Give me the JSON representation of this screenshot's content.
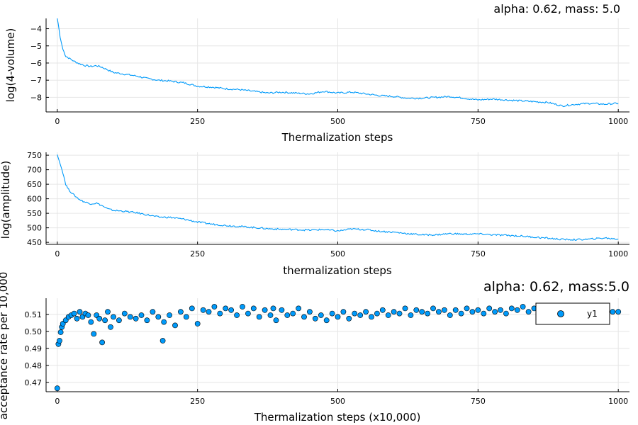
{
  "chart_data": [
    {
      "type": "line",
      "title": "alpha: 0.62, mass: 5.0",
      "xlabel": "Thermalization steps",
      "ylabel": "log(4-volume)",
      "xlim": [
        -20,
        1020
      ],
      "ylim": [
        -8.85,
        -3.4
      ],
      "xticks": [
        0,
        250,
        500,
        750,
        1000
      ],
      "yticks": [
        -8,
        -7,
        -6,
        -5,
        -4
      ],
      "ytick_labels": [
        "−8",
        "−7",
        "−6",
        "−5",
        "−4"
      ],
      "color": "#009AFA",
      "series": [
        {
          "name": "y1",
          "x": [
            0,
            5,
            10,
            15,
            20,
            30,
            40,
            50,
            60,
            70,
            80,
            90,
            100,
            120,
            140,
            160,
            180,
            200,
            225,
            250,
            275,
            300,
            325,
            350,
            375,
            400,
            425,
            450,
            475,
            500,
            525,
            550,
            575,
            600,
            625,
            650,
            675,
            700,
            725,
            750,
            775,
            800,
            825,
            850,
            875,
            900,
            925,
            950,
            975,
            1000
          ],
          "y": [
            -3.3,
            -4.5,
            -5.2,
            -5.6,
            -5.7,
            -5.9,
            -6.05,
            -6.15,
            -6.2,
            -6.15,
            -6.25,
            -6.4,
            -6.55,
            -6.65,
            -6.75,
            -6.9,
            -7.0,
            -7.05,
            -7.15,
            -7.35,
            -7.4,
            -7.5,
            -7.55,
            -7.65,
            -7.75,
            -7.7,
            -7.75,
            -7.8,
            -7.65,
            -7.75,
            -7.7,
            -7.8,
            -7.9,
            -7.95,
            -8.05,
            -8.05,
            -8.0,
            -7.95,
            -8.05,
            -8.15,
            -8.1,
            -8.15,
            -8.2,
            -8.25,
            -8.3,
            -8.5,
            -8.4,
            -8.35,
            -8.4,
            -8.35
          ]
        }
      ]
    },
    {
      "type": "line",
      "title": "",
      "xlabel": "thermalization steps",
      "ylabel": "log(amplitude)",
      "xlim": [
        -20,
        1020
      ],
      "ylim": [
        443,
        760
      ],
      "xticks": [
        0,
        250,
        500,
        750,
        1000
      ],
      "yticks": [
        450,
        500,
        550,
        600,
        650,
        700,
        750
      ],
      "ytick_labels": [
        "450",
        "500",
        "550",
        "600",
        "650",
        "700",
        "750"
      ],
      "color": "#009AFA",
      "series": [
        {
          "name": "y1",
          "x": [
            0,
            5,
            10,
            15,
            20,
            30,
            40,
            50,
            60,
            70,
            80,
            90,
            100,
            120,
            140,
            160,
            180,
            200,
            225,
            250,
            275,
            300,
            325,
            350,
            375,
            400,
            425,
            450,
            475,
            500,
            525,
            550,
            575,
            600,
            625,
            650,
            675,
            700,
            725,
            750,
            775,
            800,
            825,
            850,
            875,
            900,
            925,
            950,
            975,
            1000
          ],
          "y": [
            752,
            720,
            690,
            650,
            632,
            612,
            597,
            588,
            583,
            585,
            576,
            565,
            560,
            557,
            552,
            545,
            537,
            536,
            530,
            520,
            513,
            508,
            505,
            501,
            497,
            495,
            494,
            492,
            494,
            489,
            496,
            494,
            488,
            485,
            480,
            476,
            476,
            480,
            478,
            479,
            476,
            474,
            472,
            468,
            464,
            460,
            459,
            461,
            465,
            461
          ]
        }
      ]
    },
    {
      "type": "scatter",
      "title": "alpha: 0.62, mass:5.0",
      "xlabel": "Thermalization steps (x10,000)",
      "ylabel": "acceptance rate per 10,000",
      "xlim": [
        -20,
        1020
      ],
      "ylim": [
        0.4645,
        0.5195
      ],
      "xticks": [
        0,
        250,
        500,
        750,
        1000
      ],
      "yticks": [
        0.47,
        0.48,
        0.49,
        0.5,
        0.51
      ],
      "ytick_labels": [
        "0.47",
        "0.48",
        "0.49",
        "0.50",
        "0.51"
      ],
      "color": "#009AFA",
      "legend": {
        "label": "y1",
        "placement": "top-right"
      },
      "series": [
        {
          "name": "y1",
          "x": [
            0,
            2,
            4,
            6,
            8,
            10,
            15,
            20,
            25,
            30,
            35,
            40,
            45,
            50,
            55,
            60,
            65,
            70,
            75,
            80,
            85,
            90,
            95,
            100,
            110,
            120,
            130,
            140,
            150,
            160,
            170,
            180,
            188,
            190,
            200,
            210,
            220,
            230,
            240,
            250,
            260,
            270,
            280,
            290,
            300,
            310,
            320,
            330,
            340,
            350,
            360,
            370,
            380,
            385,
            390,
            400,
            410,
            420,
            430,
            440,
            450,
            460,
            470,
            480,
            490,
            500,
            510,
            520,
            530,
            540,
            550,
            560,
            570,
            580,
            590,
            600,
            610,
            620,
            630,
            640,
            650,
            660,
            670,
            680,
            690,
            700,
            710,
            720,
            730,
            740,
            750,
            760,
            770,
            780,
            790,
            800,
            810,
            820,
            830,
            840,
            850,
            860,
            870,
            880,
            890,
            900,
            910,
            920,
            930,
            940,
            950,
            960,
            970,
            980,
            990,
            1000
          ],
          "y": [
            0.4665,
            0.4925,
            0.4945,
            0.4995,
            0.5025,
            0.5045,
            0.5065,
            0.5085,
            0.5095,
            0.5105,
            0.5075,
            0.5115,
            0.5085,
            0.5105,
            0.5095,
            0.5055,
            0.4985,
            0.5095,
            0.5075,
            0.4935,
            0.5065,
            0.5115,
            0.5025,
            0.5085,
            0.5065,
            0.5105,
            0.5085,
            0.5075,
            0.5095,
            0.5065,
            0.5115,
            0.5085,
            0.4945,
            0.5055,
            0.5095,
            0.5035,
            0.5115,
            0.5085,
            0.5135,
            0.5045,
            0.5125,
            0.5115,
            0.5145,
            0.5105,
            0.5135,
            0.5125,
            0.5095,
            0.5145,
            0.5105,
            0.5135,
            0.5085,
            0.5125,
            0.5095,
            0.5135,
            0.5065,
            0.5125,
            0.5095,
            0.5105,
            0.5135,
            0.5085,
            0.5115,
            0.5075,
            0.5095,
            0.5065,
            0.5105,
            0.5085,
            0.5115,
            0.5075,
            0.5105,
            0.5095,
            0.5115,
            0.5085,
            0.5105,
            0.5125,
            0.5095,
            0.5115,
            0.5105,
            0.5135,
            0.5095,
            0.5125,
            0.5115,
            0.5105,
            0.5135,
            0.5115,
            0.5125,
            0.5095,
            0.5125,
            0.5105,
            0.5135,
            0.5115,
            0.5125,
            0.5105,
            0.5135,
            0.5115,
            0.5125,
            0.5105,
            0.5135,
            0.5125,
            0.5145,
            0.5115,
            0.5135,
            0.5115,
            0.5125,
            0.5105,
            0.5135,
            0.5125,
            0.5115,
            0.5135,
            0.5105,
            0.5125,
            0.5135,
            0.5115,
            0.5135,
            0.5125,
            0.5115,
            0.5115
          ]
        }
      ]
    }
  ]
}
